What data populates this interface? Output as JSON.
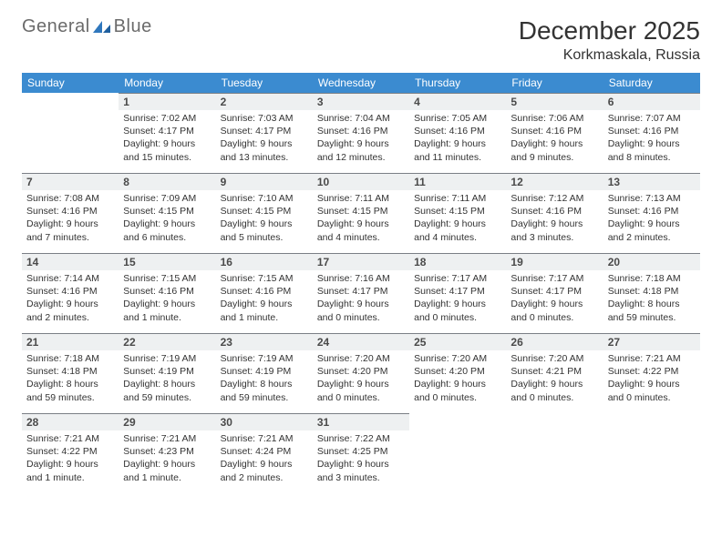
{
  "brand": {
    "word1": "General",
    "word2": "Blue"
  },
  "title": "December 2025",
  "location": "Korkmaskala, Russia",
  "colors": {
    "header_bg": "#3b8bd0",
    "header_text": "#ffffff",
    "daynum_bg": "#eef0f1",
    "daynum_border": "#7a7f85",
    "brand_gray": "#6b6b6b",
    "brand_blue": "#2f77bd"
  },
  "day_names": [
    "Sunday",
    "Monday",
    "Tuesday",
    "Wednesday",
    "Thursday",
    "Friday",
    "Saturday"
  ],
  "weeks": [
    [
      null,
      {
        "n": "1",
        "sunrise": "7:02 AM",
        "sunset": "4:17 PM",
        "daylight": "9 hours and 15 minutes."
      },
      {
        "n": "2",
        "sunrise": "7:03 AM",
        "sunset": "4:17 PM",
        "daylight": "9 hours and 13 minutes."
      },
      {
        "n": "3",
        "sunrise": "7:04 AM",
        "sunset": "4:16 PM",
        "daylight": "9 hours and 12 minutes."
      },
      {
        "n": "4",
        "sunrise": "7:05 AM",
        "sunset": "4:16 PM",
        "daylight": "9 hours and 11 minutes."
      },
      {
        "n": "5",
        "sunrise": "7:06 AM",
        "sunset": "4:16 PM",
        "daylight": "9 hours and 9 minutes."
      },
      {
        "n": "6",
        "sunrise": "7:07 AM",
        "sunset": "4:16 PM",
        "daylight": "9 hours and 8 minutes."
      }
    ],
    [
      {
        "n": "7",
        "sunrise": "7:08 AM",
        "sunset": "4:16 PM",
        "daylight": "9 hours and 7 minutes."
      },
      {
        "n": "8",
        "sunrise": "7:09 AM",
        "sunset": "4:15 PM",
        "daylight": "9 hours and 6 minutes."
      },
      {
        "n": "9",
        "sunrise": "7:10 AM",
        "sunset": "4:15 PM",
        "daylight": "9 hours and 5 minutes."
      },
      {
        "n": "10",
        "sunrise": "7:11 AM",
        "sunset": "4:15 PM",
        "daylight": "9 hours and 4 minutes."
      },
      {
        "n": "11",
        "sunrise": "7:11 AM",
        "sunset": "4:15 PM",
        "daylight": "9 hours and 4 minutes."
      },
      {
        "n": "12",
        "sunrise": "7:12 AM",
        "sunset": "4:16 PM",
        "daylight": "9 hours and 3 minutes."
      },
      {
        "n": "13",
        "sunrise": "7:13 AM",
        "sunset": "4:16 PM",
        "daylight": "9 hours and 2 minutes."
      }
    ],
    [
      {
        "n": "14",
        "sunrise": "7:14 AM",
        "sunset": "4:16 PM",
        "daylight": "9 hours and 2 minutes."
      },
      {
        "n": "15",
        "sunrise": "7:15 AM",
        "sunset": "4:16 PM",
        "daylight": "9 hours and 1 minute."
      },
      {
        "n": "16",
        "sunrise": "7:15 AM",
        "sunset": "4:16 PM",
        "daylight": "9 hours and 1 minute."
      },
      {
        "n": "17",
        "sunrise": "7:16 AM",
        "sunset": "4:17 PM",
        "daylight": "9 hours and 0 minutes."
      },
      {
        "n": "18",
        "sunrise": "7:17 AM",
        "sunset": "4:17 PM",
        "daylight": "9 hours and 0 minutes."
      },
      {
        "n": "19",
        "sunrise": "7:17 AM",
        "sunset": "4:17 PM",
        "daylight": "9 hours and 0 minutes."
      },
      {
        "n": "20",
        "sunrise": "7:18 AM",
        "sunset": "4:18 PM",
        "daylight": "8 hours and 59 minutes."
      }
    ],
    [
      {
        "n": "21",
        "sunrise": "7:18 AM",
        "sunset": "4:18 PM",
        "daylight": "8 hours and 59 minutes."
      },
      {
        "n": "22",
        "sunrise": "7:19 AM",
        "sunset": "4:19 PM",
        "daylight": "8 hours and 59 minutes."
      },
      {
        "n": "23",
        "sunrise": "7:19 AM",
        "sunset": "4:19 PM",
        "daylight": "8 hours and 59 minutes."
      },
      {
        "n": "24",
        "sunrise": "7:20 AM",
        "sunset": "4:20 PM",
        "daylight": "9 hours and 0 minutes."
      },
      {
        "n": "25",
        "sunrise": "7:20 AM",
        "sunset": "4:20 PM",
        "daylight": "9 hours and 0 minutes."
      },
      {
        "n": "26",
        "sunrise": "7:20 AM",
        "sunset": "4:21 PM",
        "daylight": "9 hours and 0 minutes."
      },
      {
        "n": "27",
        "sunrise": "7:21 AM",
        "sunset": "4:22 PM",
        "daylight": "9 hours and 0 minutes."
      }
    ],
    [
      {
        "n": "28",
        "sunrise": "7:21 AM",
        "sunset": "4:22 PM",
        "daylight": "9 hours and 1 minute."
      },
      {
        "n": "29",
        "sunrise": "7:21 AM",
        "sunset": "4:23 PM",
        "daylight": "9 hours and 1 minute."
      },
      {
        "n": "30",
        "sunrise": "7:21 AM",
        "sunset": "4:24 PM",
        "daylight": "9 hours and 2 minutes."
      },
      {
        "n": "31",
        "sunrise": "7:22 AM",
        "sunset": "4:25 PM",
        "daylight": "9 hours and 3 minutes."
      },
      null,
      null,
      null
    ]
  ],
  "labels": {
    "sunrise": "Sunrise:",
    "sunset": "Sunset:",
    "daylight": "Daylight:"
  }
}
